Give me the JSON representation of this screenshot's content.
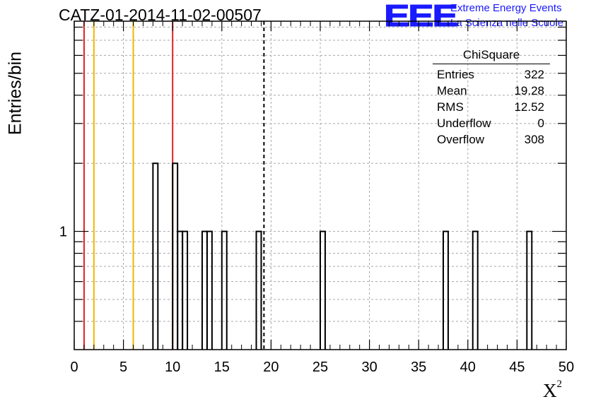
{
  "chart_data": {
    "type": "bar",
    "title": "CATZ-01-2014-11-02-00507",
    "xlabel": "X",
    "xlabel_superscript": "2",
    "ylabel": "Entries/bin",
    "xlim": [
      0,
      50
    ],
    "y_scale": "log",
    "ylim": [
      0.3,
      8.5
    ],
    "x_ticks": [
      "0",
      "5",
      "10",
      "15",
      "20",
      "25",
      "30",
      "35",
      "40",
      "45",
      "50"
    ],
    "y_ticks": [
      "1"
    ],
    "bin_width": 0.5,
    "bins": [
      {
        "x": 8.0,
        "count": 2
      },
      {
        "x": 10.0,
        "count": 2
      },
      {
        "x": 10.5,
        "count": 1
      },
      {
        "x": 11.0,
        "count": 1
      },
      {
        "x": 13.0,
        "count": 1
      },
      {
        "x": 13.5,
        "count": 1
      },
      {
        "x": 15.0,
        "count": 1
      },
      {
        "x": 18.5,
        "count": 1
      },
      {
        "x": 25.0,
        "count": 1
      },
      {
        "x": 37.5,
        "count": 1
      },
      {
        "x": 40.5,
        "count": 1
      },
      {
        "x": 46.0,
        "count": 1
      }
    ],
    "vertical_lines": [
      {
        "x": 1.0,
        "color": "#e02020",
        "style": "solid"
      },
      {
        "x": 2.0,
        "color": "#f2b600",
        "style": "solid"
      },
      {
        "x": 6.0,
        "color": "#f2b600",
        "style": "solid"
      },
      {
        "x": 10.0,
        "color": "#e02020",
        "style": "solid"
      },
      {
        "x": 19.28,
        "color": "#000000",
        "style": "dashed"
      }
    ],
    "grid": true,
    "stats_box": {
      "title": "ChiSquare",
      "rows": [
        {
          "label": "Entries",
          "value": "322"
        },
        {
          "label": "Mean",
          "value": "19.28"
        },
        {
          "label": "RMS",
          "value": "12.52"
        },
        {
          "label": "Underflow",
          "value": "0"
        },
        {
          "label": "Overflow",
          "value": "308"
        }
      ],
      "placement": "top-right"
    }
  },
  "logo": {
    "mark": "EEE",
    "line1": "Extreme Energy Events",
    "line2": "La Scienza nelle Scuole",
    "color": "#1a1aff"
  }
}
